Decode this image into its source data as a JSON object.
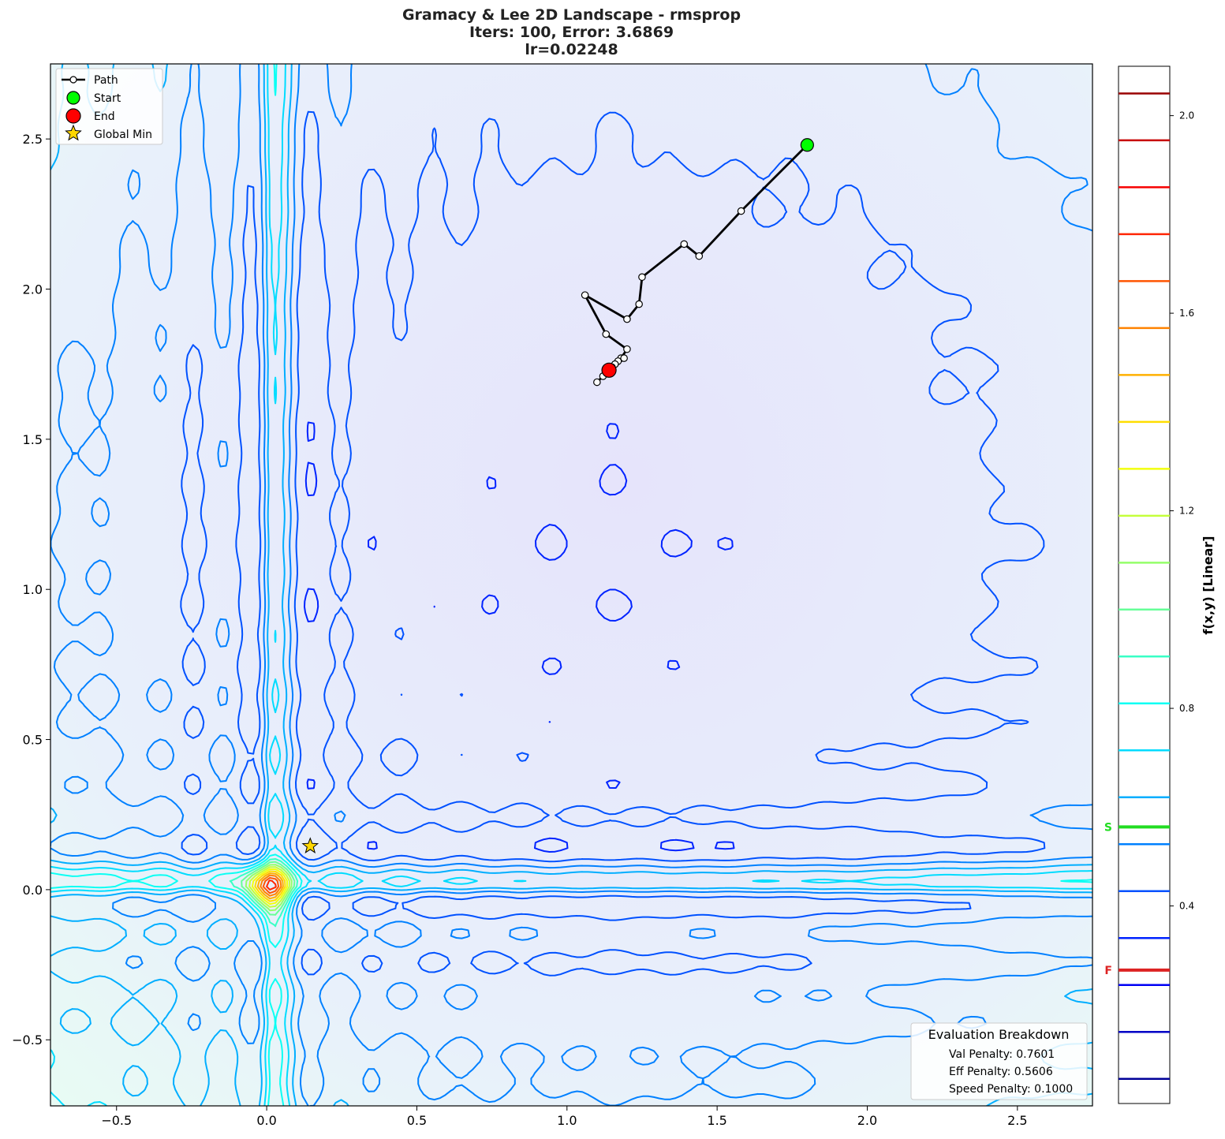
{
  "chart_data": {
    "type": "contour",
    "title": "Gramacy & Lee 2D Landscape - rmsprop",
    "subtitle_lines": [
      "Iters: 100, Error: 3.6869",
      "lr=0.02248"
    ],
    "xlim": [
      -0.72,
      2.75
    ],
    "ylim": [
      -0.72,
      2.75
    ],
    "xticks": [
      -0.5,
      0.0,
      0.5,
      1.0,
      1.5,
      2.0,
      2.5
    ],
    "xtick_labels": [
      "−0.5",
      "0.0",
      "0.5",
      "1.0",
      "1.5",
      "2.0",
      "2.5"
    ],
    "yticks": [
      -0.5,
      0.0,
      0.5,
      1.0,
      1.5,
      2.0,
      2.5
    ],
    "ytick_labels": [
      "−0.5",
      "0.0",
      "0.5",
      "1.0",
      "1.5",
      "2.0",
      "2.5"
    ],
    "grid": false,
    "legend": {
      "placement": "top-left",
      "entries": [
        {
          "label": "Path",
          "marker": "line-circle",
          "color": "#000000"
        },
        {
          "label": "Start",
          "marker": "circle",
          "color": "#00ff00"
        },
        {
          "label": "End",
          "marker": "circle",
          "color": "#ff0000"
        },
        {
          "label": "Global Min",
          "marker": "star",
          "color": "#ffd700"
        }
      ]
    },
    "path": [
      [
        1.8,
        2.48
      ],
      [
        1.58,
        2.26
      ],
      [
        1.44,
        2.11
      ],
      [
        1.39,
        2.15
      ],
      [
        1.25,
        2.04
      ],
      [
        1.24,
        1.95
      ],
      [
        1.2,
        1.9
      ],
      [
        1.06,
        1.98
      ],
      [
        1.13,
        1.85
      ],
      [
        1.2,
        1.8
      ],
      [
        1.18,
        1.77
      ],
      [
        1.19,
        1.77
      ],
      [
        1.17,
        1.76
      ],
      [
        1.16,
        1.75
      ],
      [
        1.15,
        1.74
      ],
      [
        1.12,
        1.71
      ],
      [
        1.1,
        1.69
      ],
      [
        1.14,
        1.73
      ]
    ],
    "start": [
      1.8,
      2.48
    ],
    "end": [
      1.14,
      1.73
    ],
    "global_min": [
      0.145,
      0.145
    ],
    "colorbar": {
      "label": "f(x,y) [Linear]",
      "range": [
        0.0,
        2.1
      ],
      "ticks": [
        0.4,
        0.8,
        1.2,
        1.6,
        2.0
      ],
      "tick_labels": [
        "0.4",
        "0.8",
        "1.2",
        "1.6",
        "2.0"
      ],
      "markers": [
        {
          "label": "S",
          "value": 0.56,
          "color": "#22dd22"
        },
        {
          "label": "F",
          "value": 0.27,
          "color": "#dd2222"
        }
      ]
    },
    "evaluation_breakdown": {
      "title": "Evaluation Breakdown",
      "items": [
        "Val Penalty: 0.7601",
        "Eff Penalty: 0.5606",
        "Speed Penalty: 0.1000"
      ]
    }
  }
}
